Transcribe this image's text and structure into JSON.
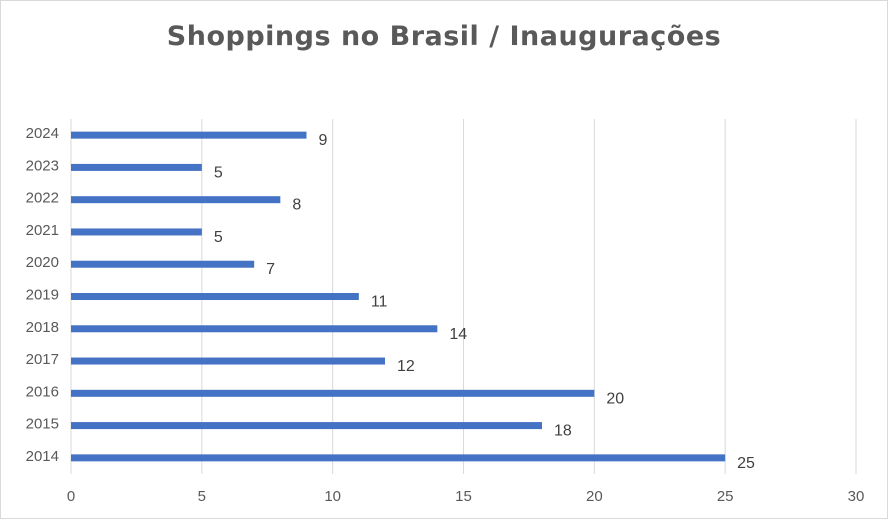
{
  "chart_data": {
    "type": "bar",
    "orientation": "horizontal",
    "title": "Shoppings no Brasil / Inaugurações",
    "categories": [
      "2014",
      "2015",
      "2016",
      "2017",
      "2018",
      "2019",
      "2020",
      "2021",
      "2022",
      "2023",
      "2024"
    ],
    "values": [
      25,
      18,
      20,
      12,
      14,
      11,
      7,
      5,
      8,
      5,
      9
    ],
    "xlim": [
      0,
      30
    ],
    "xticks": [
      0,
      5,
      10,
      15,
      20,
      25,
      30
    ],
    "grid": "vertical",
    "legend": "none",
    "bar_color": "#4472c4",
    "grid_color": "#d9d9d9"
  }
}
